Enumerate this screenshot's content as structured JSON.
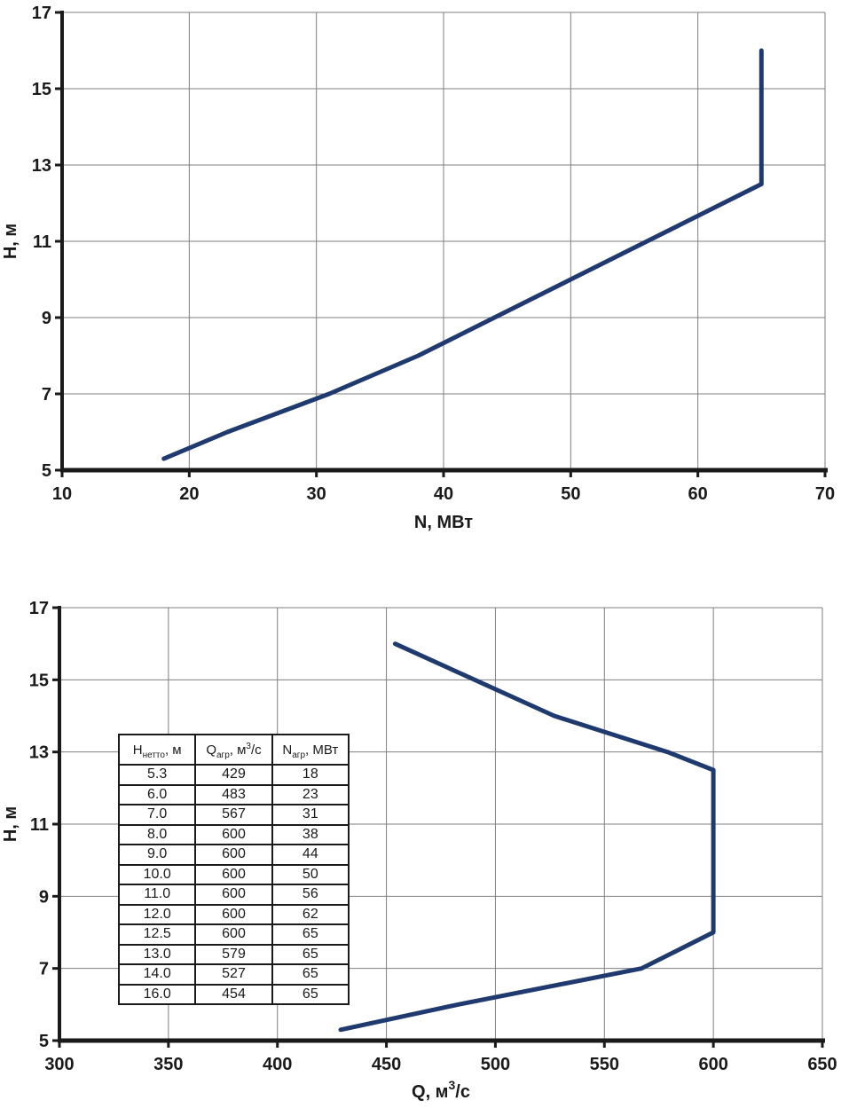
{
  "page": {
    "background": "#ffffff"
  },
  "colors": {
    "curve": "#1f3a6e",
    "grid": "#7f7f7f",
    "axis": "#1a1a1a",
    "text": "#1a1a1a",
    "table_border": "#1a1a1a"
  },
  "chart_data": [
    {
      "type": "line",
      "title": "",
      "xlabel_parts": [
        {
          "text": "N, МВт"
        }
      ],
      "ylabel": "Н, м",
      "xlim": [
        10,
        70
      ],
      "ylim": [
        5,
        17
      ],
      "xticks": [
        "10",
        "20",
        "30",
        "40",
        "50",
        "60",
        "70"
      ],
      "yticks": [
        "5",
        "7",
        "9",
        "11",
        "13",
        "15",
        "17"
      ],
      "grid": true,
      "legend": "none",
      "line_color": "#1f3a6e",
      "series": [
        {
          "name": "head-vs-power",
          "points": [
            [
              18,
              5.3
            ],
            [
              23,
              6.0
            ],
            [
              31,
              7.0
            ],
            [
              38,
              8.0
            ],
            [
              44,
              9.0
            ],
            [
              50,
              10.0
            ],
            [
              56,
              11.0
            ],
            [
              62,
              12.0
            ],
            [
              65,
              12.5
            ],
            [
              65,
              13.0
            ],
            [
              65,
              14.0
            ],
            [
              65,
              16.0
            ]
          ]
        }
      ]
    },
    {
      "type": "line",
      "title": "",
      "xlabel_parts": [
        {
          "text": "Q, м"
        },
        {
          "text": "3",
          "sup": true
        },
        {
          "text": "/с"
        }
      ],
      "ylabel": "Н, м",
      "xlim": [
        300,
        650
      ],
      "ylim": [
        5,
        17
      ],
      "xticks": [
        "300",
        "350",
        "400",
        "450",
        "500",
        "550",
        "600",
        "650"
      ],
      "yticks": [
        "5",
        "7",
        "9",
        "11",
        "13",
        "15",
        "17"
      ],
      "grid": true,
      "legend": "none",
      "line_color": "#1f3a6e",
      "series": [
        {
          "name": "head-vs-discharge",
          "points": [
            [
              429,
              5.3
            ],
            [
              483,
              6.0
            ],
            [
              567,
              7.0
            ],
            [
              600,
              8.0
            ],
            [
              600,
              9.0
            ],
            [
              600,
              10.0
            ],
            [
              600,
              11.0
            ],
            [
              600,
              12.0
            ],
            [
              600,
              12.5
            ],
            [
              579,
              13.0
            ],
            [
              527,
              14.0
            ],
            [
              454,
              16.0
            ]
          ]
        }
      ]
    }
  ],
  "table": {
    "headers": [
      {
        "main": "Н",
        "sub": "нетто",
        "after": ", м"
      },
      {
        "main": "Q",
        "sub": "агр",
        "after": ", м",
        "sup": "3",
        "after2": "/с"
      },
      {
        "main": "N",
        "sub": "агр",
        "after": ", МВт"
      }
    ],
    "rows": [
      [
        "5.3",
        "429",
        "18"
      ],
      [
        "6.0",
        "483",
        "23"
      ],
      [
        "7.0",
        "567",
        "31"
      ],
      [
        "8.0",
        "600",
        "38"
      ],
      [
        "9.0",
        "600",
        "44"
      ],
      [
        "10.0",
        "600",
        "50"
      ],
      [
        "11.0",
        "600",
        "56"
      ],
      [
        "12.0",
        "600",
        "62"
      ],
      [
        "12.5",
        "600",
        "65"
      ],
      [
        "13.0",
        "579",
        "65"
      ],
      [
        "14.0",
        "527",
        "65"
      ],
      [
        "16.0",
        "454",
        "65"
      ]
    ]
  }
}
